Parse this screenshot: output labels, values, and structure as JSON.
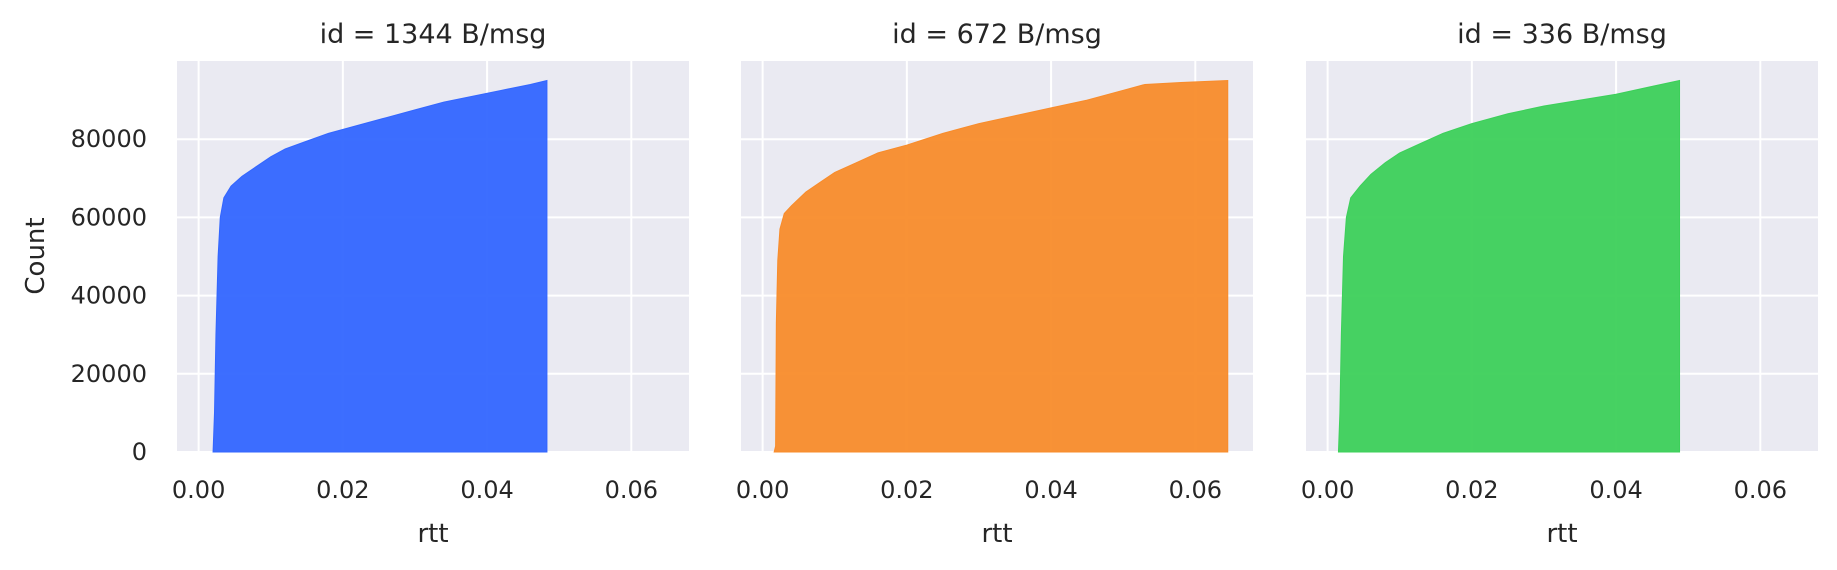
{
  "chart_data": {
    "type": "area",
    "description_kind": "cumulative histogram facet grid",
    "xlabel": "rtt",
    "ylabel": "Count",
    "xlim": [
      -0.003,
      0.068
    ],
    "ylim": [
      0,
      100000
    ],
    "x_ticks": [
      0.0,
      0.02,
      0.04,
      0.06
    ],
    "x_tick_labels": [
      "0.00",
      "0.02",
      "0.04",
      "0.06"
    ],
    "y_ticks": [
      0,
      20000,
      40000,
      60000,
      80000
    ],
    "y_tick_labels": [
      "0",
      "20000",
      "40000",
      "60000",
      "80000"
    ],
    "grid": true,
    "panels": [
      {
        "title": "id = 1344 B/msg",
        "color": "#3366ff",
        "points": [
          [
            0.002,
            0
          ],
          [
            0.0022,
            10000
          ],
          [
            0.0024,
            30000
          ],
          [
            0.0027,
            50000
          ],
          [
            0.003,
            60000
          ],
          [
            0.0035,
            65000
          ],
          [
            0.0045,
            68000
          ],
          [
            0.006,
            70500
          ],
          [
            0.008,
            73000
          ],
          [
            0.01,
            75500
          ],
          [
            0.012,
            77500
          ],
          [
            0.015,
            79500
          ],
          [
            0.018,
            81500
          ],
          [
            0.022,
            83500
          ],
          [
            0.026,
            85500
          ],
          [
            0.03,
            87500
          ],
          [
            0.034,
            89500
          ],
          [
            0.038,
            91000
          ],
          [
            0.042,
            92500
          ],
          [
            0.046,
            94000
          ],
          [
            0.0483,
            95000
          ]
        ]
      },
      {
        "title": "id = 672 B/msg",
        "color": "#f88c2b",
        "points": [
          [
            0.0016,
            0
          ],
          [
            0.0018,
            1500
          ],
          [
            0.0019,
            33000
          ],
          [
            0.0021,
            49000
          ],
          [
            0.0024,
            57000
          ],
          [
            0.003,
            61000
          ],
          [
            0.004,
            63000
          ],
          [
            0.006,
            66500
          ],
          [
            0.008,
            69000
          ],
          [
            0.01,
            71500
          ],
          [
            0.013,
            74000
          ],
          [
            0.016,
            76500
          ],
          [
            0.02,
            78500
          ],
          [
            0.025,
            81500
          ],
          [
            0.03,
            84000
          ],
          [
            0.035,
            86000
          ],
          [
            0.04,
            88000
          ],
          [
            0.045,
            90000
          ],
          [
            0.05,
            92500
          ],
          [
            0.053,
            94000
          ],
          [
            0.058,
            94500
          ],
          [
            0.0645,
            95000
          ]
        ]
      },
      {
        "title": "id = 336 B/msg",
        "color": "#3dd05a",
        "points": [
          [
            0.0015,
            0
          ],
          [
            0.0017,
            10000
          ],
          [
            0.0019,
            30000
          ],
          [
            0.0022,
            50000
          ],
          [
            0.0026,
            60000
          ],
          [
            0.0032,
            65000
          ],
          [
            0.0045,
            68000
          ],
          [
            0.006,
            71000
          ],
          [
            0.008,
            74000
          ],
          [
            0.01,
            76500
          ],
          [
            0.013,
            79000
          ],
          [
            0.016,
            81500
          ],
          [
            0.02,
            84000
          ],
          [
            0.025,
            86500
          ],
          [
            0.03,
            88500
          ],
          [
            0.035,
            90000
          ],
          [
            0.04,
            91500
          ],
          [
            0.045,
            93500
          ],
          [
            0.0488,
            95000
          ]
        ]
      }
    ]
  }
}
